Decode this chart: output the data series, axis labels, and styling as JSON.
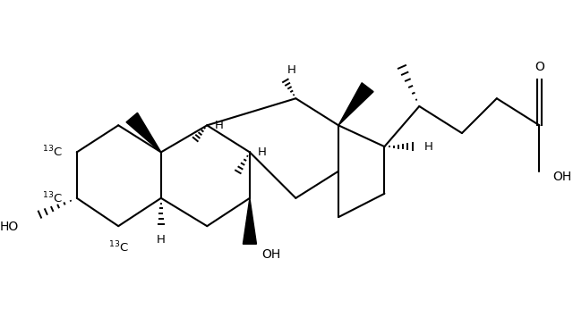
{
  "background": "#ffffff",
  "line_color": "#000000",
  "lw": 1.5,
  "figsize": [
    6.4,
    3.46
  ],
  "dpi": 100,
  "xlim": [
    0,
    10.5
  ],
  "ylim": [
    -0.5,
    6.0
  ]
}
